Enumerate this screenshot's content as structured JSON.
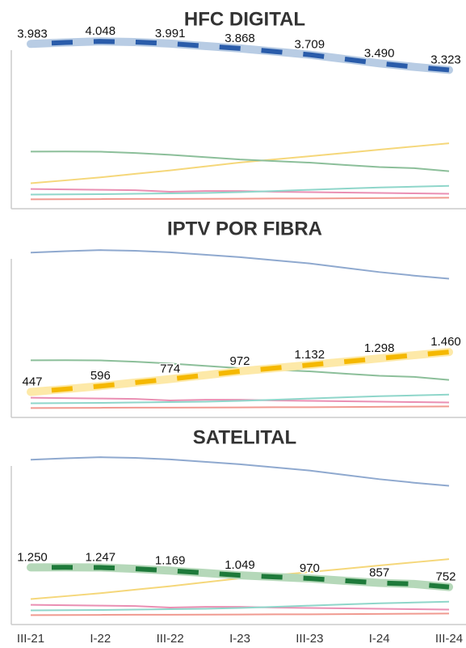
{
  "chart_data": {
    "type": "line",
    "small_multiples": true,
    "categories": [
      "III-21",
      null,
      "I-22",
      null,
      "III-22",
      null,
      "I-23",
      null,
      "III-23",
      null,
      "I-24",
      null,
      "III-24"
    ],
    "ylim": [
      -200,
      4400
    ],
    "series": [
      {
        "name": "HFC DIGITAL",
        "color": "#2a5caa",
        "faint_color": "#8fa9cf",
        "band_color": "#b8cce4",
        "values": [
          3983,
          4020,
          4048,
          4030,
          3991,
          3930,
          3868,
          3790,
          3709,
          3600,
          3490,
          3400,
          3323
        ],
        "value_labels": [
          "3.983",
          null,
          "4.048",
          null,
          "3.991",
          null,
          "3.868",
          null,
          "3.709",
          null,
          "3.490",
          null,
          "3.323"
        ]
      },
      {
        "name": "IPTV POR FIBRA",
        "color": "#f5b800",
        "faint_color": "#f5d77a",
        "band_color": "#fde9a8",
        "values": [
          447,
          520,
          596,
          685,
          774,
          873,
          972,
          1052,
          1132,
          1215,
          1298,
          1380,
          1460
        ],
        "value_labels": [
          "447",
          null,
          "596",
          null,
          "774",
          null,
          "972",
          null,
          "1.132",
          null,
          "1.298",
          null,
          "1.460"
        ]
      },
      {
        "name": "SATELITAL",
        "color": "#1e7a3a",
        "faint_color": "#8cbf9a",
        "band_color": "#b5d8b9",
        "values": [
          1250,
          1252,
          1247,
          1215,
          1169,
          1110,
          1049,
          1010,
          970,
          912,
          857,
          830,
          752
        ],
        "value_labels": [
          "1.250",
          null,
          "1.247",
          null,
          "1.169",
          null,
          "1.049",
          null,
          "970",
          null,
          "857",
          null,
          "752"
        ]
      },
      {
        "faint_color": "#ea8fb3",
        "values": [
          300,
          290,
          280,
          270,
          230,
          250,
          250,
          230,
          220,
          210,
          200,
          190,
          180
        ]
      },
      {
        "faint_color": "#8fd6ca",
        "values": [
          160,
          165,
          170,
          180,
          190,
          200,
          220,
          250,
          280,
          310,
          340,
          360,
          380
        ]
      },
      {
        "faint_color": "#f09a90",
        "values": [
          40,
          42,
          45,
          48,
          50,
          52,
          55,
          58,
          60,
          65,
          70,
          75,
          80
        ]
      }
    ]
  }
}
